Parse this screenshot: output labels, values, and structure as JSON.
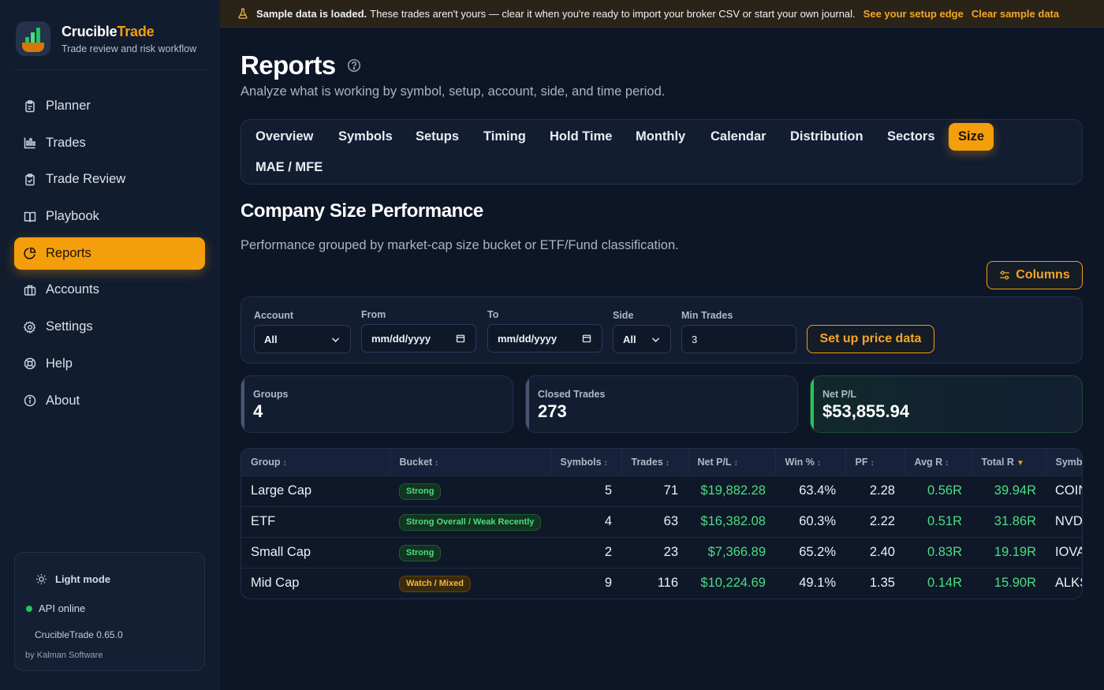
{
  "brand": {
    "name_main": "Crucible",
    "name_accent": "Trade",
    "tagline": "Trade review and risk workflow"
  },
  "sidebar": {
    "items": [
      {
        "label": "Planner",
        "icon": "clipboard-icon"
      },
      {
        "label": "Trades",
        "icon": "chart-bars-icon"
      },
      {
        "label": "Trade Review",
        "icon": "clipboard-check-icon"
      },
      {
        "label": "Playbook",
        "icon": "book-icon"
      },
      {
        "label": "Reports",
        "icon": "pie-chart-icon",
        "active": true
      },
      {
        "label": "Accounts",
        "icon": "briefcase-icon"
      },
      {
        "label": "Settings",
        "icon": "gear-icon"
      },
      {
        "label": "Help",
        "icon": "lifebuoy-icon"
      },
      {
        "label": "About",
        "icon": "info-icon"
      }
    ],
    "footer": {
      "mode_label": "Light mode",
      "api_status": "API online",
      "version": "CrucibleTrade 0.65.0",
      "byline": "by Kalman Software"
    }
  },
  "banner": {
    "bold": "Sample data is loaded.",
    "text": "These trades aren't yours — clear it when you're ready to import your broker CSV or start your own journal.",
    "link1": "See your setup edge",
    "link2": "Clear sample data"
  },
  "page": {
    "title": "Reports",
    "subtitle": "Analyze what is working by symbol, setup, account, side, and time period."
  },
  "tabs": [
    "Overview",
    "Symbols",
    "Setups",
    "Timing",
    "Hold Time",
    "Monthly",
    "Calendar",
    "Distribution",
    "Sectors",
    "Size",
    "MAE / MFE"
  ],
  "active_tab": "Size",
  "section": {
    "title": "Company Size Performance",
    "subtitle": "Performance grouped by market-cap size bucket or ETF/Fund classification."
  },
  "columns_label": "Columns",
  "filters": {
    "account": {
      "label": "Account",
      "value": "All"
    },
    "from": {
      "label": "From",
      "value": "mm/dd/yyyy"
    },
    "to": {
      "label": "To",
      "value": "mm/dd/yyyy"
    },
    "side": {
      "label": "Side",
      "value": "All"
    },
    "min_trades": {
      "label": "Min Trades",
      "value": "3"
    },
    "price_button": "Set up price data"
  },
  "stats": [
    {
      "label": "Groups",
      "value": "4"
    },
    {
      "label": "Closed Trades",
      "value": "273"
    },
    {
      "label": "Net P/L",
      "value": "$53,855.94"
    }
  ],
  "table": {
    "headers": [
      "Group",
      "Bucket",
      "Symbols",
      "Trades",
      "Net P/L",
      "Win %",
      "PF",
      "Avg R",
      "Total R",
      "Symbols"
    ],
    "rows": [
      {
        "group": "Large Cap",
        "bucket": "Strong",
        "bucket_kind": "strong",
        "symbols": "5",
        "trades": "71",
        "net_pl": "$19,882.28",
        "win": "63.4%",
        "pf": "2.28",
        "avg_r": "0.56R",
        "total_r": "39.94R",
        "symbol_list": "COIN"
      },
      {
        "group": "ETF",
        "bucket": "Strong Overall / Weak Recently",
        "bucket_kind": "strong",
        "symbols": "4",
        "trades": "63",
        "net_pl": "$16,382.08",
        "win": "60.3%",
        "pf": "2.22",
        "avg_r": "0.51R",
        "total_r": "31.86R",
        "symbol_list": "NVDL"
      },
      {
        "group": "Small Cap",
        "bucket": "Strong",
        "bucket_kind": "strong",
        "symbols": "2",
        "trades": "23",
        "net_pl": "$7,366.89",
        "win": "65.2%",
        "pf": "2.40",
        "avg_r": "0.83R",
        "total_r": "19.19R",
        "symbol_list": "IOVA"
      },
      {
        "group": "Mid Cap",
        "bucket": "Watch / Mixed",
        "bucket_kind": "watch",
        "symbols": "9",
        "trades": "116",
        "net_pl": "$10,224.69",
        "win": "49.1%",
        "pf": "1.35",
        "avg_r": "0.14R",
        "total_r": "15.90R",
        "symbol_list": "ALKS"
      }
    ]
  },
  "colors": {
    "accent": "#f59e0b",
    "positive": "#4ade80",
    "background": "#0d1626"
  }
}
